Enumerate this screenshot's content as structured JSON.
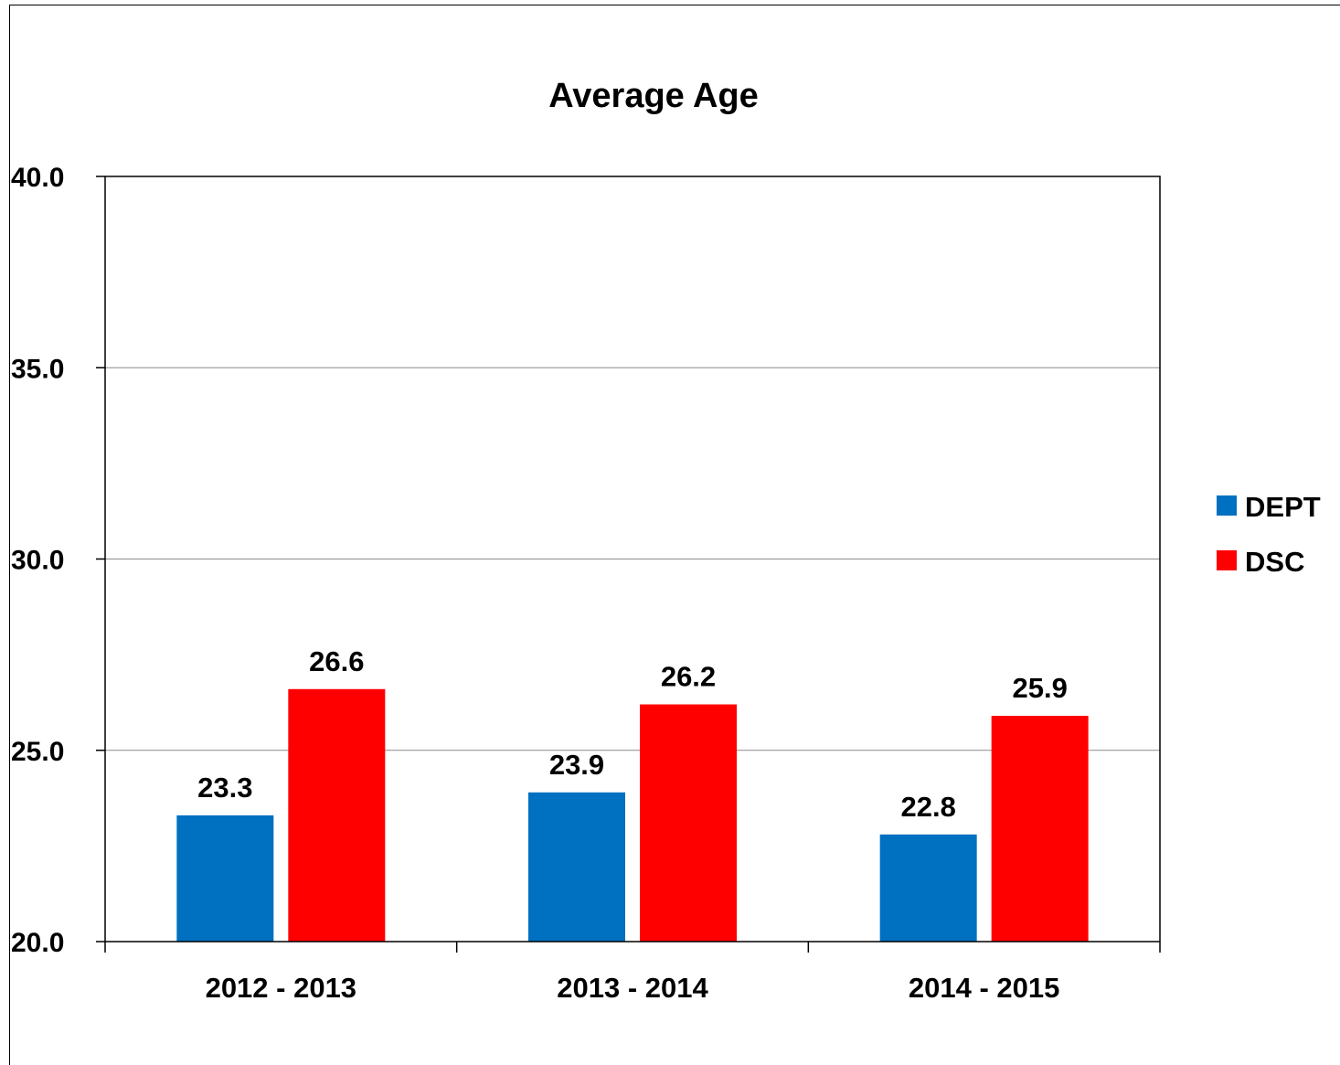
{
  "chart_data": {
    "type": "bar",
    "title": "Average Age",
    "xlabel": "",
    "ylabel": "",
    "categories": [
      "2012 - 2013",
      "2013 - 2014",
      "2014 - 2015"
    ],
    "series": [
      {
        "name": "DEPT",
        "values": [
          23.3,
          23.9,
          22.8
        ],
        "color": "#0070C0"
      },
      {
        "name": "DSC",
        "values": [
          26.6,
          26.2,
          25.9
        ],
        "color": "#FF0000"
      }
    ],
    "ylim": [
      20.0,
      40.0
    ],
    "yticks": [
      "20.0",
      "25.0",
      "30.0",
      "35.0",
      "40.0"
    ],
    "grid": true,
    "legend_position": "right",
    "data_labels": true
  }
}
